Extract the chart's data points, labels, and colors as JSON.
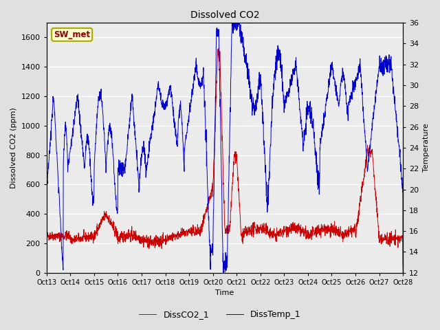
{
  "title": "Dissolved CO2",
  "xlabel": "Time",
  "ylabel_left": "Dissolved CO2 (ppm)",
  "ylabel_right": "Temperature",
  "x_tick_labels": [
    "Oct 13",
    "Oct 14",
    "Oct 15",
    "Oct 16",
    "Oct 17",
    "Oct 18",
    "Oct 19",
    "Oct 20",
    "Oct 21",
    "Oct 22",
    "Oct 23",
    "Oct 24",
    "Oct 25",
    "Oct 26",
    "Oct 27",
    "Oct 28"
  ],
  "ylim_left": [
    0,
    1700
  ],
  "ylim_right": [
    12,
    36
  ],
  "yticks_left": [
    0,
    200,
    400,
    600,
    800,
    1000,
    1200,
    1400,
    1600
  ],
  "yticks_right": [
    12,
    14,
    16,
    18,
    20,
    22,
    24,
    26,
    28,
    30,
    32,
    34,
    36
  ],
  "legend_labels": [
    "DissCO2_1",
    "DissTemp_1"
  ],
  "line_colors": [
    "#cc0000",
    "#0000cc"
  ],
  "bg_color": "#e0e0e0",
  "plot_bg_color": "#ebebeb",
  "label_box_color": "#ffffcc",
  "label_box_edge": "#aaaa00",
  "label_text": "SW_met",
  "label_text_color": "#8b0000",
  "grid_color": "#ffffff",
  "title_fontsize": 10,
  "axis_label_fontsize": 8,
  "tick_fontsize": 8,
  "legend_fontsize": 9
}
